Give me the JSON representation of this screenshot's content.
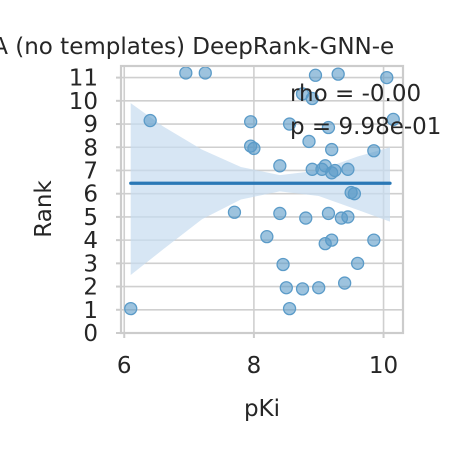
{
  "chart_data": {
    "type": "scatter",
    "title": "AA (no templates) DeepRank-GNN-e",
    "xlabel": "pKi",
    "ylabel": "Rank",
    "xlim": [
      5.95,
      10.3
    ],
    "ylim": [
      0,
      11.5
    ],
    "xticks": [
      6,
      8,
      10
    ],
    "yticks": [
      0,
      1,
      2,
      3,
      4,
      5,
      6,
      7,
      8,
      9,
      10,
      11
    ],
    "grid": true,
    "annotation": {
      "line1": "rho = -0.00",
      "line2": "p = 9.98e-01"
    },
    "regression": {
      "x": [
        6.1,
        10.1
      ],
      "y": [
        6.45,
        6.45
      ]
    },
    "confidence_band": {
      "x": [
        6.1,
        6.6,
        7.2,
        7.8,
        8.4,
        9.0,
        9.6,
        10.1
      ],
      "upper": [
        9.9,
        8.9,
        7.9,
        7.15,
        6.8,
        7.0,
        7.6,
        8.0
      ],
      "lower": [
        2.5,
        3.6,
        4.9,
        5.75,
        6.1,
        5.9,
        5.3,
        4.8
      ]
    },
    "points": [
      {
        "x": 6.1,
        "y": 1.05
      },
      {
        "x": 6.4,
        "y": 9.15
      },
      {
        "x": 6.95,
        "y": 11.2
      },
      {
        "x": 7.25,
        "y": 11.2
      },
      {
        "x": 7.7,
        "y": 5.2
      },
      {
        "x": 7.95,
        "y": 9.1
      },
      {
        "x": 7.95,
        "y": 8.05
      },
      {
        "x": 8.0,
        "y": 7.95
      },
      {
        "x": 8.2,
        "y": 4.15
      },
      {
        "x": 8.4,
        "y": 5.15
      },
      {
        "x": 8.4,
        "y": 7.2
      },
      {
        "x": 8.45,
        "y": 2.95
      },
      {
        "x": 8.5,
        "y": 1.95
      },
      {
        "x": 8.55,
        "y": 1.05
      },
      {
        "x": 8.55,
        "y": 9.0
      },
      {
        "x": 8.75,
        "y": 10.3
      },
      {
        "x": 8.75,
        "y": 1.9
      },
      {
        "x": 8.8,
        "y": 4.95
      },
      {
        "x": 8.85,
        "y": 8.25
      },
      {
        "x": 8.9,
        "y": 7.05
      },
      {
        "x": 8.9,
        "y": 10.1
      },
      {
        "x": 8.95,
        "y": 11.1
      },
      {
        "x": 9.0,
        "y": 1.95
      },
      {
        "x": 9.05,
        "y": 7.05
      },
      {
        "x": 9.1,
        "y": 7.2
      },
      {
        "x": 9.1,
        "y": 3.85
      },
      {
        "x": 9.15,
        "y": 8.85
      },
      {
        "x": 9.15,
        "y": 5.15
      },
      {
        "x": 9.2,
        "y": 4.0
      },
      {
        "x": 9.2,
        "y": 7.9
      },
      {
        "x": 9.2,
        "y": 6.9
      },
      {
        "x": 9.25,
        "y": 7.0
      },
      {
        "x": 9.3,
        "y": 11.15
      },
      {
        "x": 9.35,
        "y": 4.95
      },
      {
        "x": 9.4,
        "y": 2.15
      },
      {
        "x": 9.45,
        "y": 5.0
      },
      {
        "x": 9.45,
        "y": 7.05
      },
      {
        "x": 9.5,
        "y": 6.05
      },
      {
        "x": 9.55,
        "y": 6.0
      },
      {
        "x": 9.6,
        "y": 3.0
      },
      {
        "x": 9.85,
        "y": 7.85
      },
      {
        "x": 9.85,
        "y": 4.0
      },
      {
        "x": 10.05,
        "y": 11.0
      },
      {
        "x": 10.15,
        "y": 9.2
      }
    ],
    "colors": {
      "points": "#5b9bc8",
      "line": "#2a78b6",
      "band": "#c6dbef",
      "grid": "#cfcfcf",
      "spine": "#cccccc"
    }
  }
}
